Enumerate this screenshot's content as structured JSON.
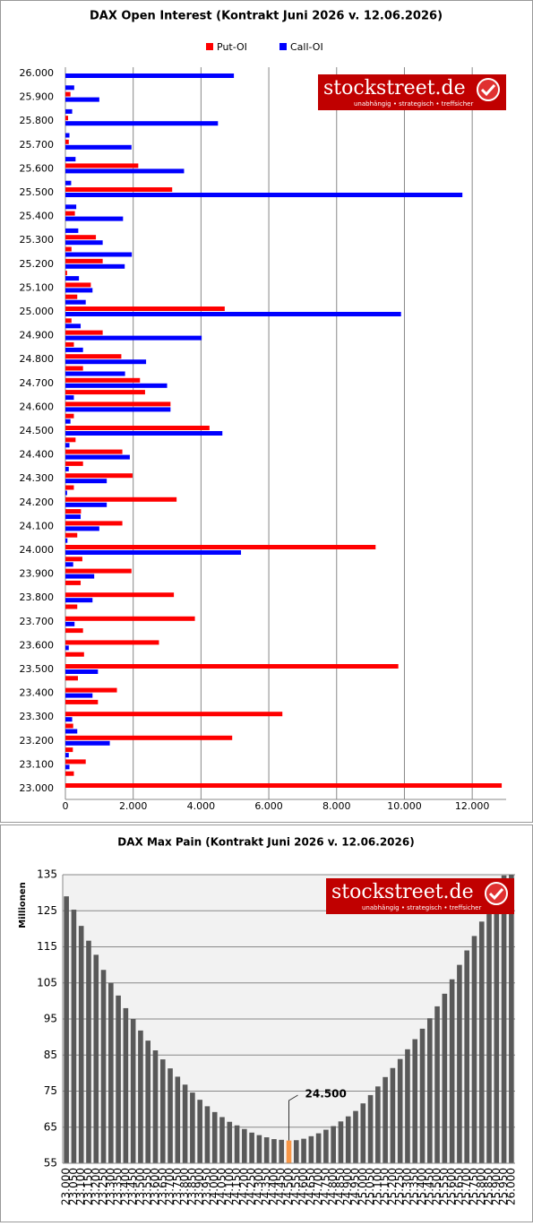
{
  "chart_data": [
    {
      "type": "bar",
      "orientation": "horizontal",
      "title": "DAX Open Interest (Kontrakt Juni 2026 v. 12.06.2026)",
      "watermark": {
        "name": "stockstreet.de",
        "tagline": "unabhängig • strategisch • treffsicher"
      },
      "categories": [
        "23.000",
        null,
        "23.100",
        null,
        "23.200",
        null,
        "23.300",
        null,
        "23.400",
        null,
        "23.500",
        null,
        "23.600",
        null,
        "23.700",
        null,
        "23.800",
        null,
        "23.900",
        null,
        "24.000",
        null,
        "24.100",
        null,
        "24.200",
        null,
        "24.300",
        null,
        "24.400",
        null,
        "24.500",
        null,
        "24.600",
        null,
        "24.700",
        null,
        "24.800",
        null,
        "24.900",
        null,
        "25.000",
        null,
        "25.100",
        null,
        "25.200",
        null,
        "25.300",
        null,
        "25.400",
        null,
        "25.500",
        null,
        "25.600",
        null,
        "25.700",
        null,
        "25.800",
        null,
        "25.900",
        null,
        "26.000"
      ],
      "series": [
        {
          "name": "Put-OI",
          "color": "#ff0000",
          "values": [
            12870,
            250,
            600,
            220,
            4920,
            230,
            6400,
            960,
            1520,
            370,
            9820,
            550,
            2760,
            520,
            3820,
            350,
            3200,
            450,
            1950,
            500,
            9150,
            350,
            1680,
            460,
            3280,
            250,
            1980,
            520,
            1680,
            300,
            4250,
            250,
            3100,
            2350,
            2200,
            520,
            1650,
            250,
            1100,
            180,
            4700,
            350,
            750,
            50,
            1100,
            180,
            900,
            0,
            280,
            0,
            3150,
            0,
            2150,
            0,
            100,
            0,
            80,
            0,
            150,
            0,
            0
          ]
        },
        {
          "name": "Call-OI",
          "color": "#0000ff",
          "values": [
            0,
            0,
            120,
            100,
            1310,
            350,
            200,
            0,
            800,
            0,
            960,
            0,
            100,
            0,
            270,
            0,
            800,
            0,
            850,
            230,
            5180,
            60,
            1000,
            450,
            1220,
            50,
            1220,
            100,
            1900,
            120,
            4630,
            150,
            3100,
            250,
            3000,
            1760,
            2380,
            520,
            4020,
            450,
            9900,
            600,
            800,
            400,
            1750,
            1960,
            1100,
            380,
            1700,
            320,
            11710,
            170,
            3500,
            300,
            1950,
            120,
            4500,
            200,
            1000,
            260,
            4970
          ]
        }
      ],
      "xlim": [
        0,
        13000
      ],
      "xticks": [
        0,
        {
          "value": 2000,
          "label": "2.000"
        },
        {
          "value": 4000,
          "label": "4.000"
        },
        {
          "value": 6000,
          "label": "6.000"
        },
        {
          "value": 8000,
          "label": "8.000"
        },
        {
          "value": 10000,
          "label": "10.000"
        },
        {
          "value": 12000,
          "label": "12.000"
        }
      ],
      "grid": true,
      "legend": "top"
    },
    {
      "type": "bar",
      "orientation": "vertical",
      "title": "DAX Max Pain (Kontrakt Juni 2026 v. 12.06.2026)",
      "watermark": {
        "name": "stockstreet.de",
        "tagline": "unabhängig • strategisch • treffsicher"
      },
      "y_label": "Millionen",
      "categories": [
        "23.000",
        "23.050",
        "23.100",
        "23.150",
        "23.200",
        "23.250",
        "23.300",
        "23.350",
        "23.400",
        "23.450",
        "23.500",
        "23.550",
        "23.600",
        "23.650",
        "23.700",
        "23.750",
        "23.800",
        "23.850",
        "23.900",
        "23.950",
        "24.000",
        "24.050",
        "24.100",
        "24.150",
        "24.200",
        "24.250",
        "24.300",
        "24.350",
        "24.400",
        "24.450",
        "24.500",
        "24.550",
        "24.600",
        "24.650",
        "24.700",
        "24.750",
        "24.800",
        "24.850",
        "24.900",
        "24.950",
        "25.000",
        "25.050",
        "25.100",
        "25.150",
        "25.200",
        "25.250",
        "25.300",
        "25.350",
        "25.400",
        "25.450",
        "25.500",
        "25.550",
        "25.600",
        "25.650",
        "25.700",
        "25.750",
        "25.800",
        "25.850",
        "25.900",
        "25.950",
        "26.000"
      ],
      "values": [
        129,
        125.3,
        120.8,
        116.7,
        112.8,
        108.6,
        105,
        101.5,
        98,
        95,
        91.8,
        89,
        86.3,
        83.8,
        81.3,
        79,
        76.8,
        74.6,
        72.6,
        70.8,
        69.2,
        67.8,
        66.5,
        65.5,
        64.5,
        63.5,
        62.8,
        62.2,
        61.7,
        61.5,
        61.3,
        61.4,
        61.8,
        62.5,
        63.3,
        64.3,
        65.3,
        66.6,
        68,
        69.5,
        71.6,
        73.9,
        76.3,
        78.9,
        81.4,
        83.9,
        86.6,
        89.4,
        92.3,
        95.2,
        98.5,
        102,
        106,
        110,
        114,
        118,
        122,
        126.3,
        130.5,
        134.8,
        139
      ],
      "color": "#595959",
      "highlight_color": "#f79646",
      "annotation": "24.500",
      "ylim": [
        55,
        135
      ],
      "yticks": [
        55,
        65,
        75,
        85,
        95,
        105,
        115,
        125,
        135
      ],
      "grid": true
    }
  ]
}
